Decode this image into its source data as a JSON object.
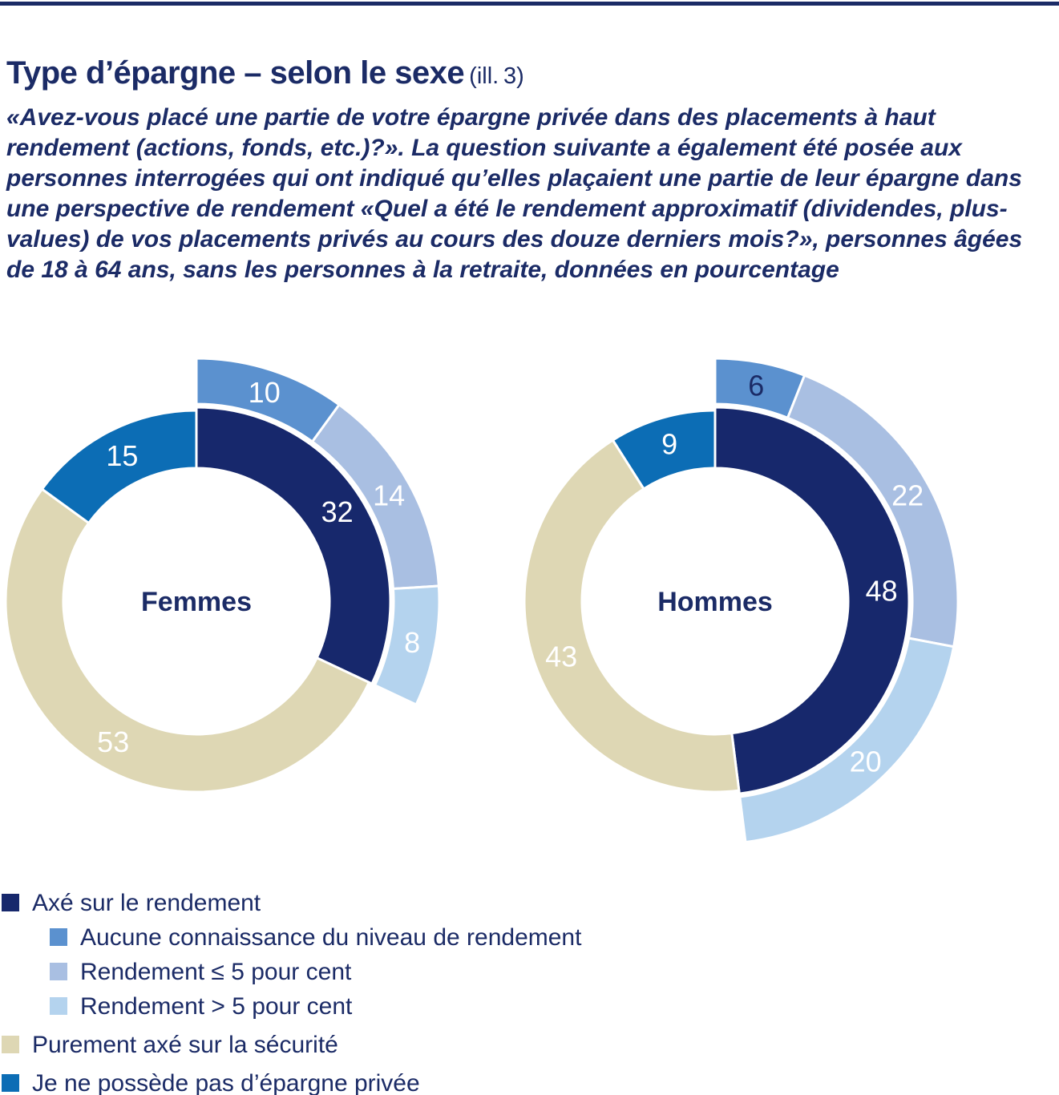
{
  "page": {
    "title": "Type d’épargne – selon le sexe",
    "title_suffix": "(ill. 3)",
    "description": "«Avez-vous placé une partie de votre épargne privée dans des placements à haut rendement (actions, fonds, etc.)?». La question suivante a également été posée aux personnes interrogées qui ont indiqué qu’elles plaçaient une partie de leur épargne dans une perspective de rendement «Quel a été le rendement approximatif (dividendes, plus-values) de vos placements privés au cours des douze derniers mois?», personnes âgées de 18 à 64 ans, sans les personnes à la retraite, données en pourcentage"
  },
  "colors": {
    "rendement_navy": "#17286c",
    "aucune_connaissance_blue": "#5b91cf",
    "rendement_le5_blue": "#a9bfe2",
    "rendement_gt5_blue": "#b4d3ee",
    "securite_beige": "#ded7b4",
    "pas_epargne_blue": "#0c6db5",
    "text_navy": "#1b2b66",
    "gap_white": "#ffffff"
  },
  "chart_data": [
    {
      "type": "donut",
      "center_label": "Femmes",
      "units": "pourcentage",
      "base_ring": [
        {
          "label": "Axé sur le rendement",
          "value": 32,
          "color_key": "rendement_navy",
          "raised": true,
          "text_color": "#ffffff"
        },
        {
          "label": "Purement axé sur la sécurité",
          "value": 53,
          "color_key": "securite_beige",
          "raised": false,
          "text_color": "#ffffff"
        },
        {
          "label": "Je ne possède pas d’épargne privée",
          "value": 15,
          "color_key": "pas_epargne_blue",
          "raised": false,
          "text_color": "#ffffff"
        }
      ],
      "detail_ring": [
        {
          "label": "Aucune connaissance du niveau de rendement",
          "value": 10,
          "color_key": "aucune_connaissance_blue",
          "text_color": "#ffffff"
        },
        {
          "label": "Rendement ≤ 5 pour cent",
          "value": 14,
          "color_key": "rendement_le5_blue",
          "text_color": "#ffffff"
        },
        {
          "label": "Rendement > 5 pour cent",
          "value": 8,
          "color_key": "rendement_gt5_blue",
          "text_color": "#ffffff"
        }
      ]
    },
    {
      "type": "donut",
      "center_label": "Hommes",
      "units": "pourcentage",
      "base_ring": [
        {
          "label": "Axé sur le rendement",
          "value": 48,
          "color_key": "rendement_navy",
          "raised": true,
          "text_color": "#ffffff"
        },
        {
          "label": "Purement axé sur la sécurité",
          "value": 43,
          "color_key": "securite_beige",
          "raised": false,
          "text_color": "#ffffff"
        },
        {
          "label": "Je ne possède pas d’épargne privée",
          "value": 9,
          "color_key": "pas_epargne_blue",
          "raised": false,
          "text_color": "#ffffff"
        }
      ],
      "detail_ring": [
        {
          "label": "Aucune connaissance du niveau de rendement",
          "value": 6,
          "color_key": "aucune_connaissance_blue",
          "text_color": "#1b2b66"
        },
        {
          "label": "Rendement ≤ 5 pour cent",
          "value": 22,
          "color_key": "rendement_le5_blue",
          "text_color": "#ffffff"
        },
        {
          "label": "Rendement > 5 pour cent",
          "value": 20,
          "color_key": "rendement_gt5_blue",
          "text_color": "#ffffff"
        }
      ]
    }
  ],
  "legend": {
    "items": [
      {
        "label": "Axé sur le rendement",
        "color_key": "rendement_navy",
        "indent": false
      },
      {
        "label": "Aucune connaissance du niveau de rendement",
        "color_key": "aucune_connaissance_blue",
        "indent": true
      },
      {
        "label": "Rendement ≤ 5 pour cent",
        "color_key": "rendement_le5_blue",
        "indent": true
      },
      {
        "label": "Rendement > 5 pour cent",
        "color_key": "rendement_gt5_blue",
        "indent": true
      },
      {
        "label": "Purement axé sur la sécurité",
        "color_key": "securite_beige",
        "indent": false
      },
      {
        "label": "Je ne possède pas d’épargne privée",
        "color_key": "pas_epargne_blue",
        "indent": false
      }
    ]
  }
}
